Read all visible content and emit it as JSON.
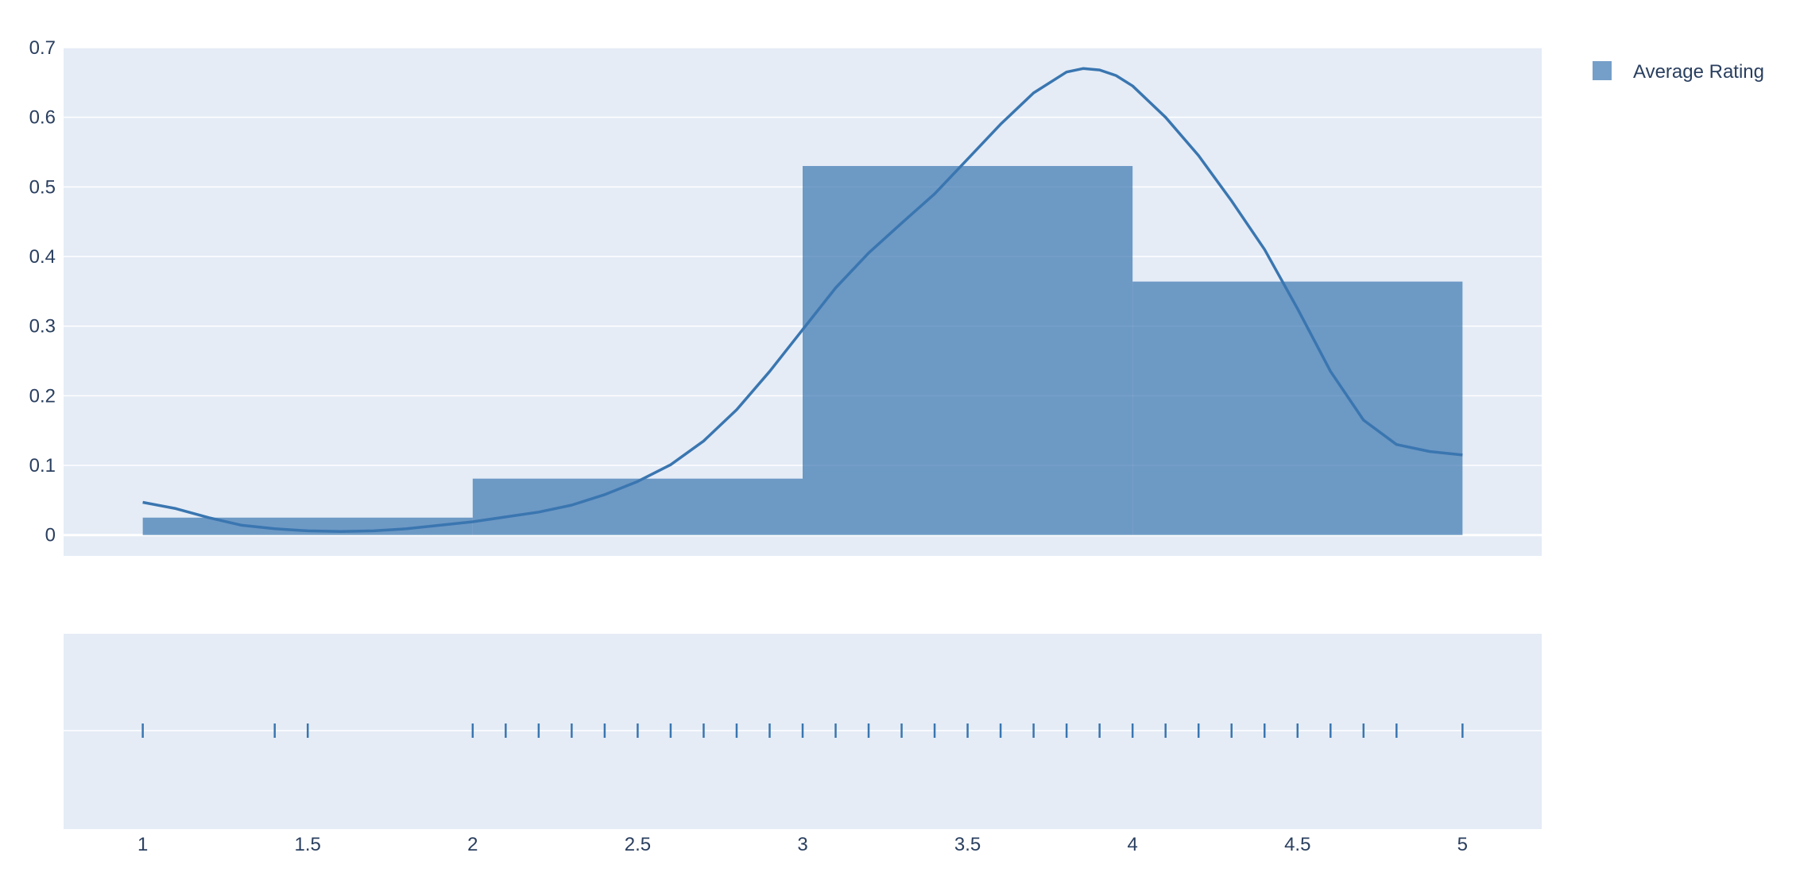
{
  "chart_data": {
    "type": "bar",
    "subtype": "distplot",
    "title": "",
    "xlabel": "",
    "ylabel": "",
    "xlim": [
      0.76,
      5.24
    ],
    "ylim": [
      -0.03,
      0.7
    ],
    "x_ticks": [
      1,
      1.5,
      2,
      2.5,
      3,
      3.5,
      4,
      4.5,
      5
    ],
    "x_tick_labels": [
      "1",
      "1.5",
      "2",
      "2.5",
      "3",
      "3.5",
      "4",
      "4.5",
      "5"
    ],
    "y_ticks": [
      0,
      0.1,
      0.2,
      0.3,
      0.4,
      0.5,
      0.6,
      0.7
    ],
    "y_tick_labels": [
      "0",
      "0.1",
      "0.2",
      "0.3",
      "0.4",
      "0.5",
      "0.6",
      "0.7"
    ],
    "grid": true,
    "legend_position": "top-right",
    "color": "#3a76b0",
    "series": [
      {
        "name": "Average Rating",
        "histogram": {
          "bins": [
            [
              1,
              2
            ],
            [
              2,
              3
            ],
            [
              3,
              4
            ],
            [
              4,
              5
            ]
          ],
          "values": [
            0.025,
            0.081,
            0.53,
            0.364
          ]
        },
        "kde": {
          "x": [
            1.0,
            1.1,
            1.2,
            1.3,
            1.4,
            1.5,
            1.6,
            1.7,
            1.8,
            1.9,
            2.0,
            2.1,
            2.2,
            2.3,
            2.4,
            2.5,
            2.6,
            2.7,
            2.8,
            2.9,
            3.0,
            3.1,
            3.2,
            3.3,
            3.4,
            3.5,
            3.6,
            3.7,
            3.8,
            3.85,
            3.9,
            3.95,
            4.0,
            4.1,
            4.2,
            4.3,
            4.4,
            4.5,
            4.6,
            4.7,
            4.8,
            4.9,
            5.0
          ],
          "y": [
            0.047,
            0.038,
            0.025,
            0.014,
            0.009,
            0.006,
            0.005,
            0.006,
            0.009,
            0.014,
            0.019,
            0.026,
            0.033,
            0.043,
            0.058,
            0.077,
            0.101,
            0.135,
            0.18,
            0.235,
            0.295,
            0.355,
            0.405,
            0.448,
            0.49,
            0.54,
            0.59,
            0.635,
            0.665,
            0.67,
            0.668,
            0.66,
            0.645,
            0.6,
            0.545,
            0.48,
            0.41,
            0.325,
            0.235,
            0.165,
            0.13,
            0.12,
            0.115
          ]
        },
        "rug": [
          1.0,
          1.4,
          1.5,
          2.0,
          2.1,
          2.2,
          2.3,
          2.4,
          2.5,
          2.6,
          2.7,
          2.8,
          2.9,
          3.0,
          3.1,
          3.2,
          3.3,
          3.4,
          3.5,
          3.6,
          3.7,
          3.8,
          3.9,
          4.0,
          4.1,
          4.2,
          4.3,
          4.4,
          4.5,
          4.6,
          4.7,
          4.8,
          5.0
        ]
      }
    ]
  }
}
